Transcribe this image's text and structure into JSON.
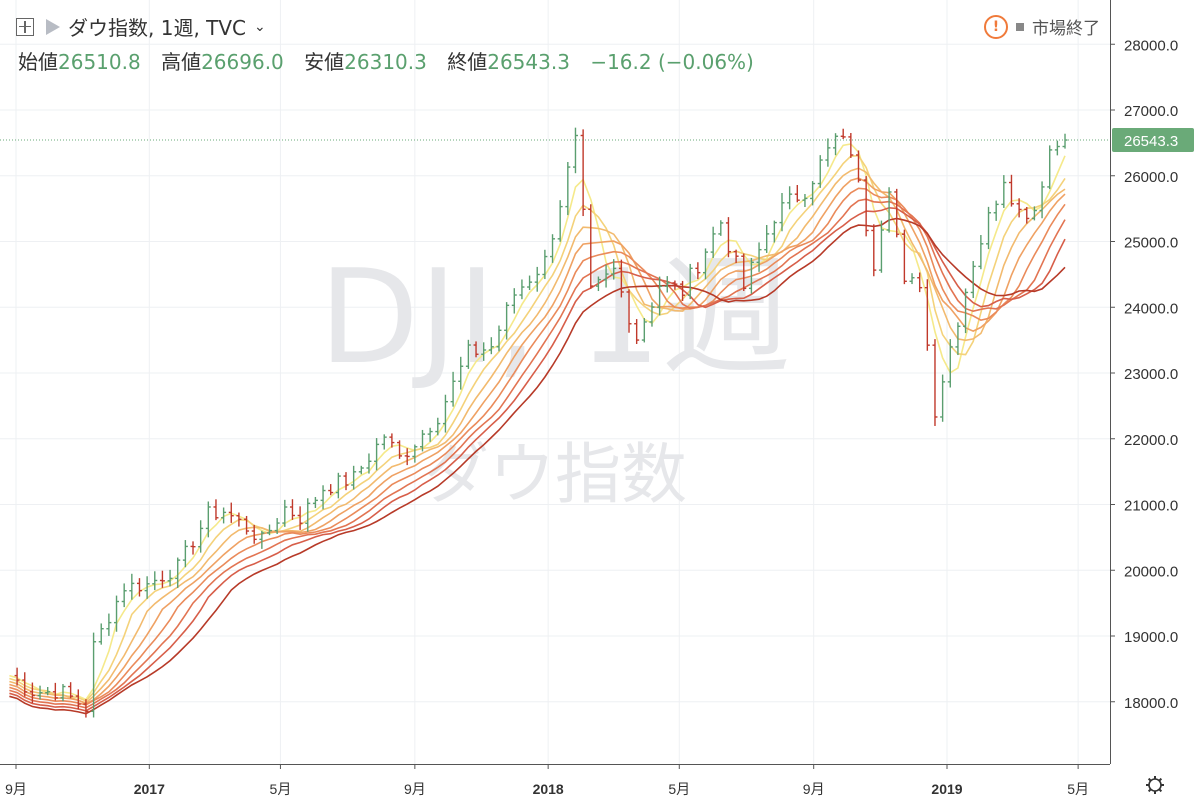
{
  "header": {
    "symbol_title": "ダウ指数, 1週, TVC",
    "chevron": "⌄",
    "market_status": "市場終了",
    "add_icon": "plus-box-icon",
    "flag_icon": "flag-icon",
    "warning_icon": "warning-icon",
    "settings_icon": "gear-icon"
  },
  "ohlc": {
    "open_label": "始値",
    "open": "26510.8",
    "high_label": "高値",
    "high": "26696.0",
    "low_label": "安値",
    "low": "26310.3",
    "close_label": "終値",
    "close": "26543.3",
    "change": "−16.2 (−0.06%)"
  },
  "watermark": {
    "line1": "DJI, 1週",
    "line2": "ダウ指数"
  },
  "colors": {
    "up": "#5a9e6f",
    "down": "#c0392b",
    "last_price_bg": "#6aaa78"
  },
  "chart_data": {
    "type": "line",
    "ylim": [
      17200,
      28400
    ],
    "yticks": [
      18000,
      19000,
      20000,
      21000,
      22000,
      23000,
      24000,
      25000,
      26000,
      27000,
      28000
    ],
    "ytick_labels": [
      "18000.0",
      "19000.0",
      "20000.0",
      "21000.0",
      "22000.0",
      "23000.0",
      "24000.0",
      "25000.0",
      "26000.0",
      "27000.0",
      "28000.0"
    ],
    "x_tick_labels": [
      "9月",
      "2017",
      "5月",
      "9月",
      "2018",
      "5月",
      "9月",
      "2019",
      "5月"
    ],
    "x_tick_dates": [
      "2016-09-01",
      "2017-01-01",
      "2017-05-01",
      "2017-09-01",
      "2018-01-01",
      "2018-05-01",
      "2018-09-01",
      "2019-01-01",
      "2019-05-01"
    ],
    "last_price": 26543.3,
    "last_price_label": "26543.3",
    "price_anchors": [
      [
        "2016-08-26",
        18400
      ],
      [
        "2016-09-16",
        18150
      ],
      [
        "2016-10-14",
        18150
      ],
      [
        "2016-11-04",
        17900
      ],
      [
        "2016-11-11",
        18850
      ],
      [
        "2016-12-09",
        19750
      ],
      [
        "2016-12-30",
        19780
      ],
      [
        "2017-01-27",
        20050
      ],
      [
        "2017-02-24",
        20850
      ],
      [
        "2017-03-10",
        20900
      ],
      [
        "2017-03-31",
        20650
      ],
      [
        "2017-04-14",
        20450
      ],
      [
        "2017-05-05",
        20950
      ],
      [
        "2017-05-19",
        20800
      ],
      [
        "2017-06-09",
        21250
      ],
      [
        "2017-07-07",
        21400
      ],
      [
        "2017-08-04",
        22050
      ],
      [
        "2017-08-18",
        21700
      ],
      [
        "2017-09-01",
        21950
      ],
      [
        "2017-09-22",
        22350
      ],
      [
        "2017-10-20",
        23300
      ],
      [
        "2017-11-10",
        23400
      ],
      [
        "2017-12-01",
        24200
      ],
      [
        "2017-12-29",
        24700
      ],
      [
        "2018-01-26",
        26500
      ],
      [
        "2018-02-09",
        24200
      ],
      [
        "2018-03-02",
        24550
      ],
      [
        "2018-03-23",
        23550
      ],
      [
        "2018-04-13",
        24350
      ],
      [
        "2018-05-04",
        24250
      ],
      [
        "2018-06-08",
        25300
      ],
      [
        "2018-06-29",
        24300
      ],
      [
        "2018-07-27",
        25400
      ],
      [
        "2018-08-24",
        25800
      ],
      [
        "2018-09-21",
        26550
      ],
      [
        "2018-10-05",
        26400
      ],
      [
        "2018-10-26",
        24700
      ],
      [
        "2018-11-09",
        25900
      ],
      [
        "2018-11-23",
        24300
      ],
      [
        "2018-12-07",
        24400
      ],
      [
        "2018-12-21",
        22450
      ],
      [
        "2019-01-04",
        23400
      ],
      [
        "2019-01-25",
        24700
      ],
      [
        "2019-02-22",
        26000
      ],
      [
        "2019-03-08",
        25450
      ],
      [
        "2019-03-22",
        25500
      ],
      [
        "2019-04-05",
        26400
      ],
      [
        "2019-04-19",
        26543
      ]
    ],
    "ma_series": [
      {
        "color": "#f5e98a",
        "offset": 0,
        "smooth": 4
      },
      {
        "color": "#f4d27a",
        "offset": 1,
        "smooth": 6
      },
      {
        "color": "#f2ba6e",
        "offset": 2,
        "smooth": 8
      },
      {
        "color": "#efa163",
        "offset": 3,
        "smooth": 10
      },
      {
        "color": "#ea8a5a",
        "offset": 4,
        "smooth": 12
      },
      {
        "color": "#e27452",
        "offset": 5,
        "smooth": 14
      },
      {
        "color": "#d75e49",
        "offset": 6,
        "smooth": 16
      },
      {
        "color": "#b73a28",
        "offset": 7,
        "smooth": 19
      }
    ]
  }
}
